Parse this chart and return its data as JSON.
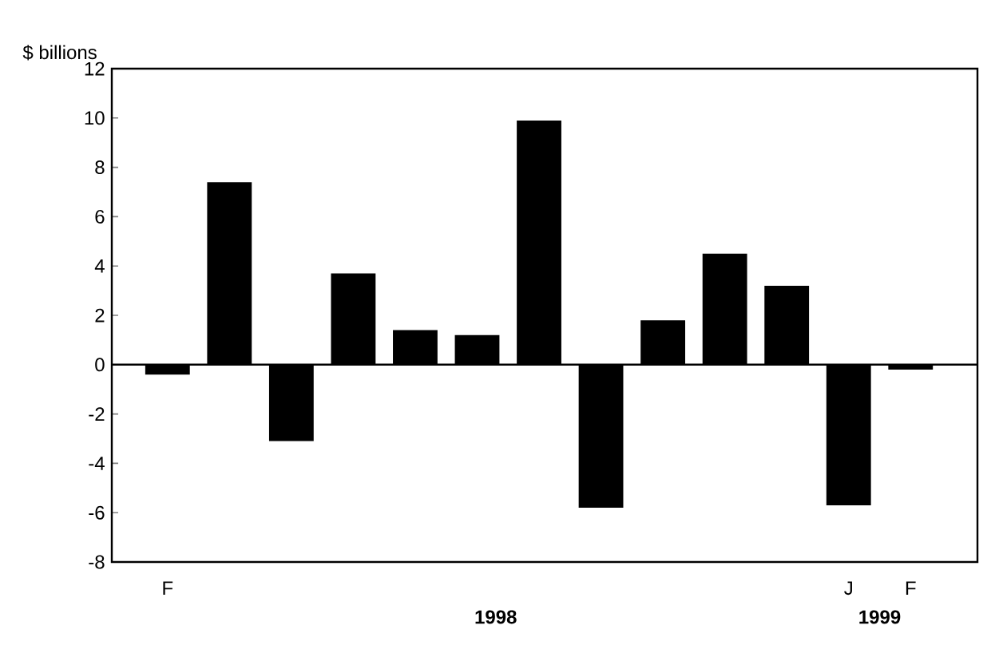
{
  "chart_data": {
    "type": "bar",
    "ylabel": "$ billions",
    "categories": [
      "F",
      null,
      null,
      null,
      null,
      null,
      null,
      null,
      null,
      null,
      null,
      "J",
      "F"
    ],
    "values": [
      -0.4,
      7.4,
      -3.1,
      3.7,
      1.4,
      1.2,
      9.9,
      -5.8,
      1.8,
      4.5,
      3.2,
      -5.7,
      -0.2
    ],
    "color": "#000000",
    "ylim": [
      -8,
      12
    ],
    "yticks": [
      -8,
      -6,
      -4,
      -2,
      0,
      2,
      4,
      6,
      8,
      10,
      12
    ],
    "annotations": [
      "1998",
      "1999"
    ]
  }
}
